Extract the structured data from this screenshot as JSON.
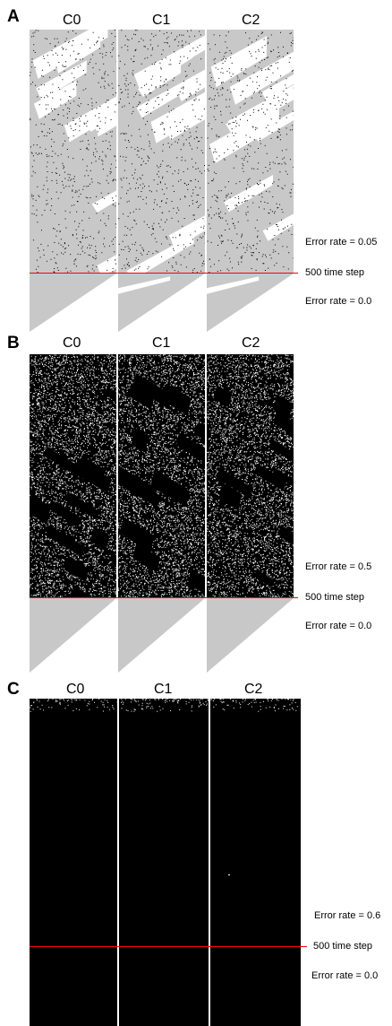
{
  "panels": [
    {
      "label": "A",
      "columns": [
        "C0",
        "C1",
        "C2"
      ],
      "error_rate_top": "Error rate =  0.05",
      "error_rate_bottom": "Error rate = 0.0",
      "step_label": "500 time step",
      "style": "sparse"
    },
    {
      "label": "B",
      "columns": [
        "C0",
        "C1",
        "C2"
      ],
      "error_rate_top": "Error rate =  0.5",
      "error_rate_bottom": "Error rate = 0.0",
      "step_label": "500 time step",
      "style": "dense"
    },
    {
      "label": "C",
      "columns": [
        "C0",
        "C1",
        "C2"
      ],
      "error_rate_top": "Error rate =  0.6",
      "error_rate_bottom": "Error rate = 0.0",
      "step_label": "500 time step",
      "style": "black"
    }
  ],
  "colors": {
    "gray": "#c8c8c8",
    "black": "#000000",
    "line": "#ff0000"
  }
}
